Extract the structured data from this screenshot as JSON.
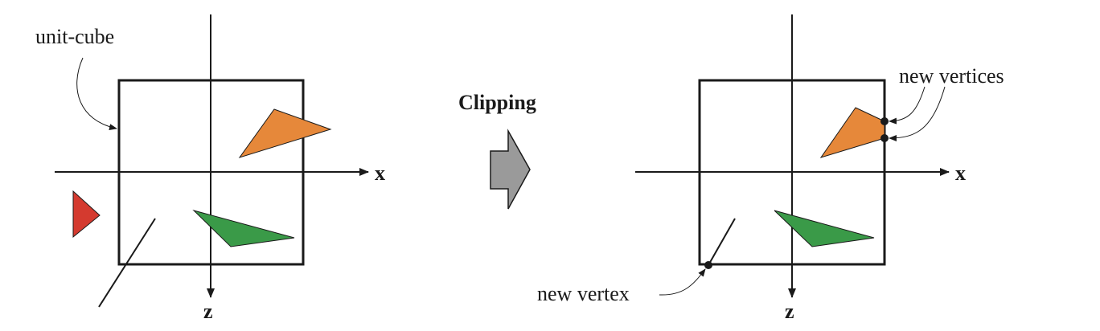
{
  "labels": {
    "unit_cube": "unit-cube",
    "clipping": "Clipping",
    "new_vertices": "new vertices",
    "new_vertex": "new vertex",
    "axis_x_left": "x",
    "axis_z_left": "z",
    "axis_x_right": "x",
    "axis_z_right": "z"
  },
  "colors": {
    "orange": "#e6883a",
    "green": "#3a9a48",
    "red": "#d43a2f",
    "arrow_gray": "#9a9a9a",
    "stroke": "#1a1a1a"
  }
}
